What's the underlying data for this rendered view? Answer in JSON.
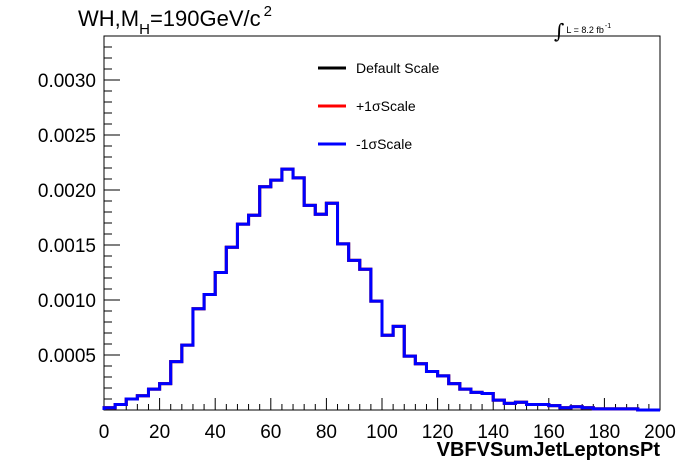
{
  "title": {
    "main": "WH,M",
    "sub": "H",
    "rest": "=190GeV/c",
    "sup": "2"
  },
  "lumi": {
    "integral": "∫",
    "text": "L = 8.2 fb",
    "sup": "-1"
  },
  "chart_data": {
    "type": "line",
    "style": "step-histogram",
    "xlabel": "VBFVSumJetLeptonsPt",
    "ylabel": "",
    "xlim": [
      0,
      200
    ],
    "ylim": [
      0,
      0.0034
    ],
    "xticks": [
      "0",
      "20",
      "40",
      "60",
      "80",
      "100",
      "120",
      "140",
      "160",
      "180",
      "200"
    ],
    "yticks": [
      {
        "v": 0.0005,
        "label": "0.0005"
      },
      {
        "v": 0.001,
        "label": "0.0010"
      },
      {
        "v": 0.0015,
        "label": "0.0015"
      },
      {
        "v": 0.002,
        "label": "0.0020"
      },
      {
        "v": 0.0025,
        "label": "0.0025"
      },
      {
        "v": 0.003,
        "label": "0.0030"
      }
    ],
    "bin_edges": [
      0,
      4,
      8,
      12,
      16,
      20,
      24,
      28,
      32,
      36,
      40,
      44,
      48,
      52,
      56,
      60,
      64,
      68,
      72,
      76,
      80,
      84,
      88,
      92,
      96,
      100,
      104,
      108,
      112,
      116,
      120,
      124,
      128,
      132,
      136,
      140,
      144,
      148,
      152,
      156,
      160,
      164,
      168,
      172,
      176,
      180,
      184,
      188,
      192,
      196,
      200
    ],
    "series": [
      {
        "name": "Default Scale",
        "color": "#000000",
        "values": [
          2e-05,
          5e-05,
          0.0001,
          0.00013,
          0.00019,
          0.00024,
          0.00044,
          0.00059,
          0.00092,
          0.00105,
          0.00125,
          0.00148,
          0.00169,
          0.00177,
          0.00203,
          0.00209,
          0.00219,
          0.00211,
          0.00186,
          0.00178,
          0.00188,
          0.00151,
          0.00136,
          0.00128,
          0.00099,
          0.00068,
          0.00076,
          0.00049,
          0.00042,
          0.00035,
          0.00031,
          0.00024,
          0.00019,
          0.00016,
          0.00015,
          9e-05,
          6e-05,
          7e-05,
          5e-05,
          5e-05,
          4e-05,
          2e-05,
          3e-05,
          2e-05,
          1e-05,
          1e-05,
          1e-05,
          1e-05,
          0.0,
          0.0
        ]
      },
      {
        "name": "+1σScale",
        "color": "#ff0000",
        "values": [
          2e-05,
          5e-05,
          0.0001,
          0.00013,
          0.00019,
          0.00024,
          0.00044,
          0.00059,
          0.00092,
          0.00105,
          0.00125,
          0.00148,
          0.00169,
          0.00177,
          0.00203,
          0.00209,
          0.00219,
          0.00211,
          0.00186,
          0.00178,
          0.00188,
          0.00151,
          0.00136,
          0.00128,
          0.00099,
          0.00068,
          0.00076,
          0.00049,
          0.00042,
          0.00035,
          0.00031,
          0.00024,
          0.00019,
          0.00016,
          0.00015,
          9e-05,
          6e-05,
          7e-05,
          5e-05,
          5e-05,
          4e-05,
          2e-05,
          3e-05,
          2e-05,
          1e-05,
          1e-05,
          1e-05,
          1e-05,
          0.0,
          0.0
        ]
      },
      {
        "name": "-1σScale",
        "color": "#0000ff",
        "values": [
          2e-05,
          5e-05,
          0.0001,
          0.00013,
          0.00019,
          0.00024,
          0.00044,
          0.00059,
          0.00092,
          0.00105,
          0.00125,
          0.00148,
          0.00169,
          0.00177,
          0.00203,
          0.00209,
          0.00219,
          0.00211,
          0.00186,
          0.00178,
          0.00188,
          0.00151,
          0.00136,
          0.00128,
          0.00099,
          0.00068,
          0.00076,
          0.00049,
          0.00042,
          0.00035,
          0.00031,
          0.00024,
          0.00019,
          0.00016,
          0.00015,
          9e-05,
          6e-05,
          7e-05,
          5e-05,
          5e-05,
          4e-05,
          2e-05,
          3e-05,
          2e-05,
          1e-05,
          1e-05,
          1e-05,
          1e-05,
          0.0,
          0.0
        ]
      }
    ],
    "legend": {
      "position": "top-center",
      "entries": [
        "Default Scale",
        "+1σScale",
        "-1σScale"
      ]
    }
  }
}
